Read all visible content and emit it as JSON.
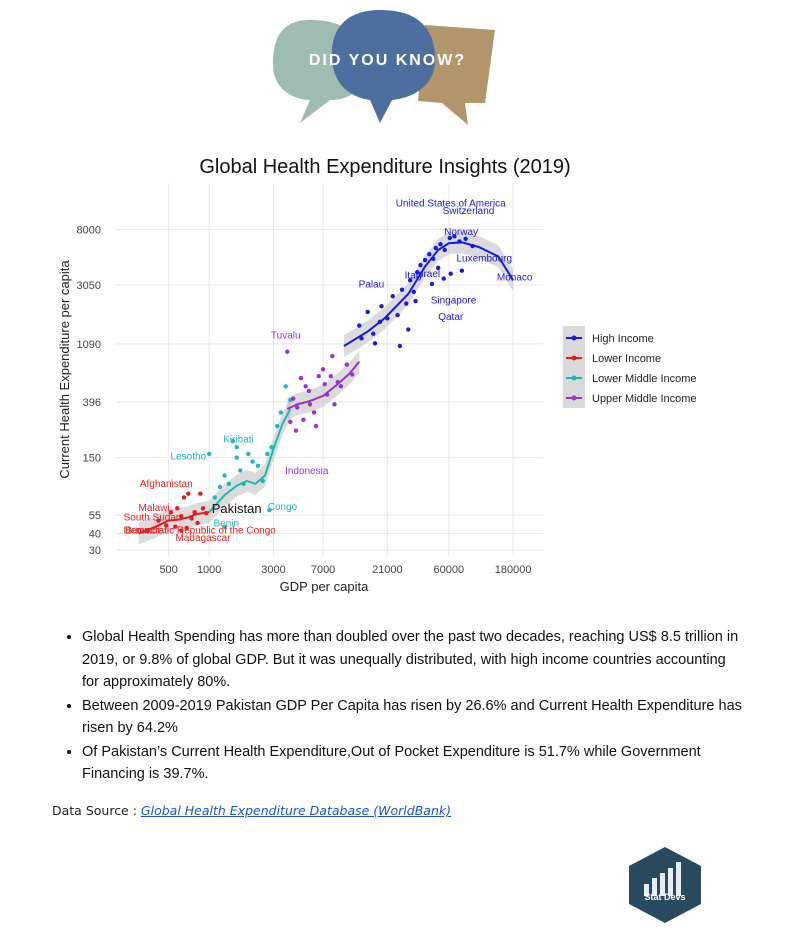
{
  "banner": {
    "text": "DID YOU KNOW?"
  },
  "chart_data": {
    "type": "scatter",
    "title": "Global Health Expenditure Insights (2019)",
    "xlabel": "GDP per capita",
    "ylabel": "Current Health Expenditure per capita",
    "x_scale": "log",
    "y_scale": "log",
    "xlim": [
      200,
      300000
    ],
    "ylim": [
      27,
      18000
    ],
    "x_ticks": [
      500,
      1000,
      3000,
      7000,
      21000,
      60000,
      180000
    ],
    "x_tick_labels": [
      "500",
      "1000",
      "3000",
      "7000",
      "21000",
      "60000",
      "180000"
    ],
    "y_ticks": [
      30,
      40,
      55,
      150,
      396,
      1090,
      3050,
      8000
    ],
    "y_tick_labels": [
      "30",
      "40",
      "55",
      "150",
      "396",
      "1090",
      "3050",
      "8000"
    ],
    "grid": true,
    "legend_position": "right",
    "legend": [
      {
        "name": "High Income",
        "color": "#1a1adc"
      },
      {
        "name": "Lower Income",
        "color": "#e61c1c"
      },
      {
        "name": "Lower Middle Income",
        "color": "#1fb8b8"
      },
      {
        "name": "Upper Middle Income",
        "color": "#9a32cd"
      }
    ],
    "series": [
      {
        "name": "High Income",
        "color": "#1a1adc",
        "points": [
          [
            13000,
            1500
          ],
          [
            15000,
            1900
          ],
          [
            17000,
            1100
          ],
          [
            19000,
            2100
          ],
          [
            21000,
            1700
          ],
          [
            23000,
            2500
          ],
          [
            25000,
            1800
          ],
          [
            27000,
            2800
          ],
          [
            29000,
            2200
          ],
          [
            31000,
            3300
          ],
          [
            33000,
            2700
          ],
          [
            35000,
            3800
          ],
          [
            37000,
            4300
          ],
          [
            40000,
            4700
          ],
          [
            43000,
            5200
          ],
          [
            46000,
            4800
          ],
          [
            48000,
            5800
          ],
          [
            52000,
            6200
          ],
          [
            56000,
            5600
          ],
          [
            61000,
            6900
          ],
          [
            66000,
            7100
          ],
          [
            72000,
            6500
          ],
          [
            80000,
            6800
          ],
          [
            90000,
            6000
          ],
          [
            13500,
            1200
          ],
          [
            16500,
            1300
          ],
          [
            18500,
            1600
          ],
          [
            26000,
            1050
          ],
          [
            30000,
            1400
          ],
          [
            34000,
            2300
          ],
          [
            45000,
            3100
          ],
          [
            50000,
            4100
          ],
          [
            55000,
            3400
          ],
          [
            62000,
            3700
          ],
          [
            75000,
            3900
          ]
        ],
        "trend": [
          [
            10000,
            1050
          ],
          [
            15000,
            1350
          ],
          [
            20000,
            1700
          ],
          [
            30000,
            2600
          ],
          [
            40000,
            4200
          ],
          [
            50000,
            5600
          ],
          [
            60000,
            6300
          ],
          [
            75000,
            6400
          ],
          [
            100000,
            5900
          ],
          [
            140000,
            5000
          ],
          [
            180000,
            3300
          ]
        ]
      },
      {
        "name": "Lower Income",
        "color": "#e61c1c",
        "points": [
          [
            350,
            42
          ],
          [
            420,
            50
          ],
          [
            480,
            46
          ],
          [
            520,
            58
          ],
          [
            580,
            62
          ],
          [
            620,
            54
          ],
          [
            650,
            75
          ],
          [
            700,
            80
          ],
          [
            740,
            52
          ],
          [
            780,
            58
          ],
          [
            820,
            48
          ],
          [
            860,
            80
          ],
          [
            900,
            62
          ],
          [
            950,
            57
          ],
          [
            620,
            42
          ],
          [
            680,
            44
          ],
          [
            560,
            45
          ]
        ],
        "trend": [
          [
            300,
            40
          ],
          [
            400,
            45
          ],
          [
            500,
            50
          ],
          [
            600,
            51
          ],
          [
            700,
            53
          ],
          [
            800,
            56
          ],
          [
            900,
            57
          ],
          [
            1000,
            58
          ]
        ]
      },
      {
        "name": "Lower Middle Income",
        "color": "#1fb8b8",
        "points": [
          [
            1100,
            75
          ],
          [
            1200,
            90
          ],
          [
            1300,
            110
          ],
          [
            1400,
            95
          ],
          [
            1500,
            200
          ],
          [
            1600,
            180
          ],
          [
            1700,
            120
          ],
          [
            1800,
            95
          ],
          [
            1950,
            160
          ],
          [
            2100,
            140
          ],
          [
            2300,
            130
          ],
          [
            2500,
            100
          ],
          [
            2700,
            160
          ],
          [
            2900,
            180
          ],
          [
            3200,
            260
          ],
          [
            3400,
            330
          ],
          [
            3700,
            520
          ],
          [
            4000,
            410
          ],
          [
            1300,
            45
          ],
          [
            2800,
            60
          ],
          [
            1000,
            160
          ],
          [
            1600,
            150
          ]
        ],
        "trend": [
          [
            1000,
            58
          ],
          [
            1300,
            78
          ],
          [
            1600,
            92
          ],
          [
            1900,
            100
          ],
          [
            2200,
            95
          ],
          [
            2600,
            110
          ],
          [
            3000,
            175
          ],
          [
            3500,
            270
          ],
          [
            4000,
            350
          ]
        ]
      },
      {
        "name": "Upper Middle Income",
        "color": "#9a32cd",
        "points": [
          [
            3800,
            950
          ],
          [
            4200,
            420
          ],
          [
            4500,
            360
          ],
          [
            4800,
            600
          ],
          [
            5200,
            520
          ],
          [
            5600,
            380
          ],
          [
            6000,
            330
          ],
          [
            6500,
            620
          ],
          [
            7000,
            700
          ],
          [
            7500,
            450
          ],
          [
            8000,
            620
          ],
          [
            8500,
            380
          ],
          [
            9000,
            560
          ],
          [
            9500,
            520
          ],
          [
            10500,
            760
          ],
          [
            11500,
            640
          ],
          [
            4000,
            280
          ],
          [
            4400,
            240
          ],
          [
            5000,
            290
          ],
          [
            5500,
            480
          ],
          [
            6200,
            260
          ],
          [
            7200,
            540
          ],
          [
            8200,
            880
          ]
        ],
        "trend": [
          [
            3800,
            350
          ],
          [
            4500,
            380
          ],
          [
            5500,
            400
          ],
          [
            7000,
            440
          ],
          [
            9000,
            540
          ],
          [
            11000,
            650
          ],
          [
            13000,
            800
          ]
        ]
      }
    ],
    "annotations": [
      {
        "text": "United States of America",
        "x": 62000,
        "y": 12000,
        "series": "High Income"
      },
      {
        "text": "Switzerland",
        "x": 84000,
        "y": 10500,
        "series": "High Income"
      },
      {
        "text": "Norway",
        "x": 74000,
        "y": 7300,
        "series": "High Income"
      },
      {
        "text": "Luxembourg",
        "x": 110000,
        "y": 4600,
        "series": "High Income"
      },
      {
        "text": "Italy",
        "x": 33000,
        "y": 3400,
        "series": "High Income"
      },
      {
        "text": "Israel",
        "x": 42000,
        "y": 3500,
        "series": "High Income"
      },
      {
        "text": "Monaco",
        "x": 185000,
        "y": 3300,
        "series": "High Income"
      },
      {
        "text": "Palau",
        "x": 16000,
        "y": 2900,
        "series": "High Income"
      },
      {
        "text": "Singapore",
        "x": 65000,
        "y": 2200,
        "series": "High Income"
      },
      {
        "text": "Qatar",
        "x": 62000,
        "y": 1650,
        "series": "High Income"
      },
      {
        "text": "Tuvalu",
        "x": 3700,
        "y": 1200,
        "series": "Upper Middle Income"
      },
      {
        "text": "Kiribati",
        "x": 1650,
        "y": 195,
        "series": "Lower Middle Income"
      },
      {
        "text": "Lesotho",
        "x": 700,
        "y": 145,
        "series": "Lower Middle Income"
      },
      {
        "text": "Indonesia",
        "x": 5300,
        "y": 113,
        "series": "Upper Middle Income"
      },
      {
        "text": "Afghanistan",
        "x": 480,
        "y": 90,
        "series": "Lower Income"
      },
      {
        "text": "Congo",
        "x": 3500,
        "y": 60,
        "series": "Lower Middle Income"
      },
      {
        "text": "Benin",
        "x": 1340,
        "y": 45,
        "series": "Lower Middle Income"
      },
      {
        "text": "Malawi",
        "x": 390,
        "y": 59,
        "series": "Lower Income"
      },
      {
        "text": "South Sudan",
        "x": 380,
        "y": 50,
        "series": "Lower Income"
      },
      {
        "text": "Burundi",
        "x": 320,
        "y": 40,
        "series": "Lower Income"
      },
      {
        "text": "Democratic Republic of the Congo",
        "x": 850,
        "y": 40,
        "series": "Lower Income"
      },
      {
        "text": "Madagascar",
        "x": 900,
        "y": 35,
        "series": "Lower Income"
      },
      {
        "text": "Pakistan",
        "x": 1600,
        "y": 57,
        "series": "highlight"
      }
    ]
  },
  "bullets": [
    "Global Health Spending has more than doubled over the past two decades, reaching US$ 8.5 trillion in 2019, or 9.8% of global GDP. But it was unequally distributed, with high income countries accounting for approximately 80%.",
    "Between 2009-2019 Pakistan GDP Per Capita has risen by 26.6% and Current Health Expenditure has risen by 64.2%",
    "Of Pakistan’s Current Health Expenditure,Out of Pocket Expenditure is 51.7% while Government Financing is 39.7%."
  ],
  "source": {
    "label": "Data Source :",
    "link_text": "Global Health Expenditure Database (WorldBank)"
  },
  "logo": {
    "text": "Stat Devs"
  }
}
